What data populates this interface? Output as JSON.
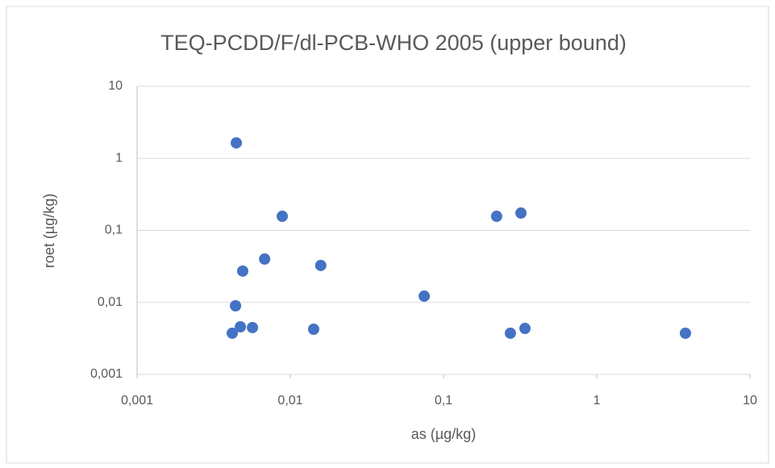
{
  "chart_data": {
    "type": "scatter",
    "title": "TEQ-PCDD/F/dl-PCB-WHO 2005 (upper bound)",
    "x_label": "as (µg/kg)",
    "y_label": "roet (µg/kg)",
    "x": [
      0.00444,
      0.00886,
      0.222,
      0.32,
      0.0068,
      0.0158,
      0.00489,
      0.0748,
      0.00439,
      0.00472,
      0.00566,
      0.00418,
      0.0142,
      0.273,
      0.34,
      3.79
    ],
    "values": [
      1.64,
      0.157,
      0.157,
      0.174,
      0.04,
      0.0326,
      0.0272,
      0.0122,
      0.00896,
      0.00458,
      0.00447,
      0.00373,
      0.00424,
      0.00373,
      0.00435,
      0.00373
    ],
    "color": "#4472c4",
    "xscale": "log",
    "yscale": "log",
    "xlim": [
      0.001,
      10
    ],
    "ylim": [
      0.001,
      10
    ],
    "xticks": [
      {
        "value": 0.001,
        "label": "0,001"
      },
      {
        "value": 0.01,
        "label": "0,01"
      },
      {
        "value": 0.1,
        "label": "0,1"
      },
      1,
      10
    ],
    "yticks": [
      {
        "value": 0.001,
        "label": "0,001"
      },
      {
        "value": 0.01,
        "label": "0,01"
      },
      {
        "value": 0.1,
        "label": "0,1"
      },
      1,
      10
    ],
    "grid": true
  }
}
